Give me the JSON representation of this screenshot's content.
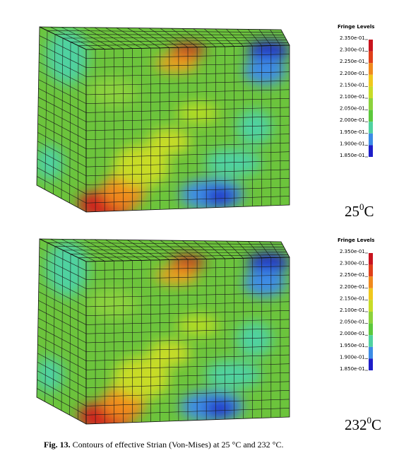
{
  "panels": [
    {
      "legend_title": "Fringe Levels",
      "levels": [
        "2.350e-01",
        "2.300e-01",
        "2.250e-01",
        "2.200e-01",
        "2.150e-01",
        "2.100e-01",
        "2.050e-01",
        "2.000e-01",
        "1.950e-01",
        "1.900e-01",
        "1.850e-01"
      ],
      "temperature": "25",
      "degree": "0",
      "unit": "C"
    },
    {
      "legend_title": "Fringe Levels",
      "levels": [
        "2.350e-01",
        "2.300e-01",
        "2.250e-01",
        "2.200e-01",
        "2.150e-01",
        "2.100e-01",
        "2.050e-01",
        "2.000e-01",
        "1.950e-01",
        "1.900e-01",
        "1.850e-01"
      ],
      "temperature": "232",
      "degree": "0",
      "unit": "C"
    }
  ],
  "caption": {
    "label": "Fig. 13.",
    "text": "Contours of effective Strian (Von-Mises) at 25 °C and 232 °C."
  }
}
